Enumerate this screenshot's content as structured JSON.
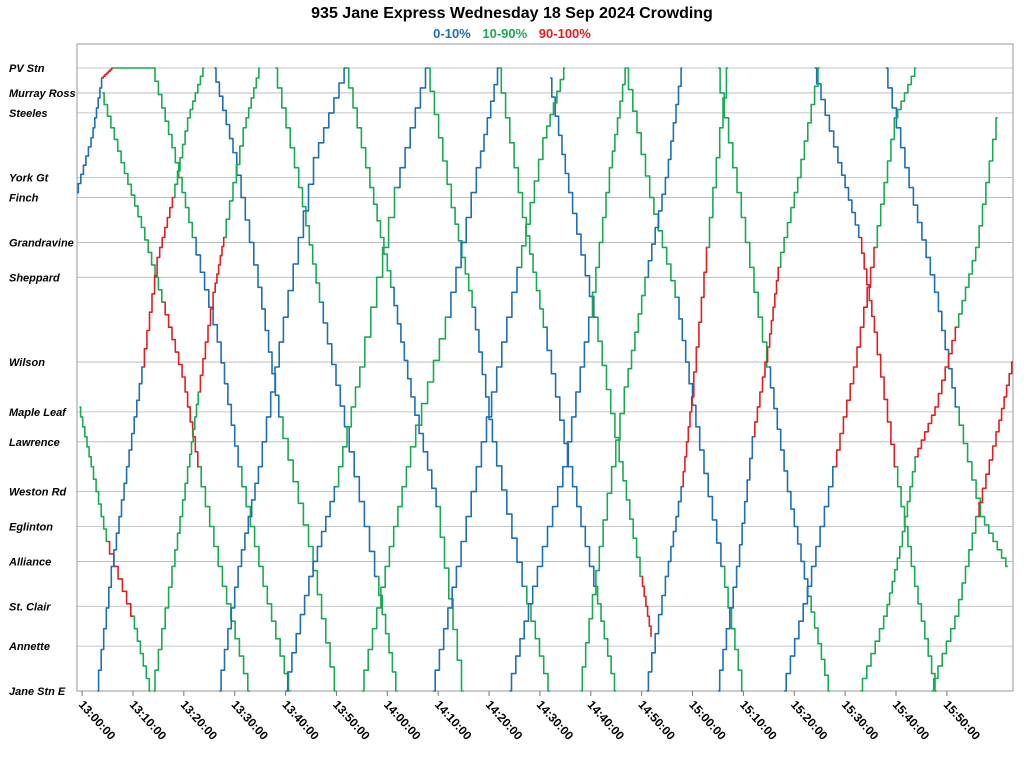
{
  "chart_data": {
    "type": "line",
    "title": "935 Jane Express Wednesday 18 Sep 2024 Crowding",
    "legend": [
      {
        "label": "0-10%",
        "color": "#1f6fb5"
      },
      {
        "label": "10-90%",
        "color": "#1aaa55"
      },
      {
        "label": "90-100%",
        "color": "#e02020"
      }
    ],
    "legend_position": "top-center",
    "grid": true,
    "x_range": [
      "12:59:00",
      "16:03:00"
    ],
    "x_ticks": [
      "13:00:00",
      "13:10:00",
      "13:20:00",
      "13:30:00",
      "13:40:00",
      "13:50:00",
      "14:00:00",
      "14:10:00",
      "14:20:00",
      "14:30:00",
      "14:40:00",
      "14:50:00",
      "15:00:00",
      "15:10:00",
      "15:20:00",
      "15:30:00",
      "15:40:00",
      "15:50:00"
    ],
    "stops": [
      {
        "name": "PV Stn",
        "km": 0.0
      },
      {
        "name": "Murray Ross",
        "km": 0.5
      },
      {
        "name": "Steeles",
        "km": 0.9
      },
      {
        "name": "York Gt",
        "km": 2.2
      },
      {
        "name": "Finch",
        "km": 2.6
      },
      {
        "name": "Grandravine",
        "km": 3.5
      },
      {
        "name": "Sheppard",
        "km": 4.2
      },
      {
        "name": "Wilson",
        "km": 5.9
      },
      {
        "name": "Maple Leaf",
        "km": 6.9
      },
      {
        "name": "Lawrence",
        "km": 7.5
      },
      {
        "name": "Weston Rd",
        "km": 8.5
      },
      {
        "name": "Eglinton",
        "km": 9.2
      },
      {
        "name": "Alliance",
        "km": 9.9
      },
      {
        "name": "St. Clair",
        "km": 10.8
      },
      {
        "name": "Annette",
        "km": 11.6
      },
      {
        "name": "Jane Stn E",
        "km": 12.5
      }
    ],
    "series": [
      {
        "direction": "southbound",
        "colors": [
          "#1aaa55",
          "#e02020",
          "#1aaa55"
        ],
        "points": [
          [
            "12:59:30",
            6.8
          ],
          [
            "13:02:00",
            8.0
          ],
          [
            "13:05:00",
            9.5
          ],
          [
            "13:10:00",
            11.0
          ],
          [
            "13:13:30",
            12.5
          ]
        ]
      },
      {
        "direction": "southbound",
        "colors": [
          "#1aaa55",
          "#e02020",
          "#1aaa55"
        ],
        "points": [
          [
            "13:04:00",
            0.5
          ],
          [
            "13:08:00",
            1.9
          ],
          [
            "13:12:00",
            3.2
          ],
          [
            "13:16:00",
            4.7
          ],
          [
            "13:20:00",
            6.2
          ],
          [
            "13:23:00",
            8.0
          ],
          [
            "13:28:00",
            10.4
          ],
          [
            "13:33:00",
            12.5
          ]
        ]
      },
      {
        "direction": "southbound",
        "colors": [
          "#1aaa55",
          "#1f6fb5",
          "#1aaa55"
        ],
        "points": [
          [
            "13:14:00",
            0.0
          ],
          [
            "13:18:00",
            1.6
          ],
          [
            "13:22:00",
            3.4
          ],
          [
            "13:27:00",
            5.5
          ],
          [
            "13:31:00",
            8.0
          ],
          [
            "13:36:00",
            10.4
          ],
          [
            "13:41:00",
            12.5
          ]
        ]
      },
      {
        "direction": "southbound",
        "colors": [
          "#1f6fb5",
          "#1aaa55"
        ],
        "points": [
          [
            "13:26:00",
            0.0
          ],
          [
            "13:30:00",
            1.7
          ],
          [
            "13:35:00",
            4.4
          ],
          [
            "13:39:00",
            7.0
          ],
          [
            "13:45:00",
            9.6
          ],
          [
            "13:50:00",
            12.5
          ]
        ]
      },
      {
        "direction": "southbound",
        "colors": [
          "#1aaa55",
          "#1f6fb5",
          "#1aaa55"
        ],
        "points": [
          [
            "13:38:00",
            0.0
          ],
          [
            "13:43:00",
            2.4
          ],
          [
            "13:47:00",
            4.7
          ],
          [
            "13:52:00",
            7.2
          ],
          [
            "13:58:00",
            10.2
          ],
          [
            "14:02:00",
            12.5
          ]
        ]
      },
      {
        "direction": "southbound",
        "colors": [
          "#1aaa55",
          "#1f6fb5",
          "#1aaa55"
        ],
        "points": [
          [
            "13:52:00",
            0.0
          ],
          [
            "13:57:00",
            2.4
          ],
          [
            "14:01:00",
            4.4
          ],
          [
            "14:05:00",
            6.6
          ],
          [
            "14:10:00",
            8.8
          ],
          [
            "14:15:00",
            12.5
          ]
        ]
      },
      {
        "direction": "southbound",
        "colors": [
          "#1aaa55",
          "#1f6fb5",
          "#1aaa55"
        ],
        "points": [
          [
            "14:08:00",
            0.0
          ],
          [
            "14:13:00",
            2.8
          ],
          [
            "14:17:00",
            4.8
          ],
          [
            "14:21:00",
            7.5
          ],
          [
            "14:27:00",
            10.4
          ],
          [
            "14:32:00",
            12.5
          ]
        ]
      },
      {
        "direction": "southbound",
        "colors": [
          "#1aaa55",
          "#1f6fb5",
          "#1aaa55"
        ],
        "points": [
          [
            "14:22:00",
            0.0
          ],
          [
            "14:27:00",
            3.0
          ],
          [
            "14:31:00",
            5.2
          ],
          [
            "14:36:00",
            8.0
          ],
          [
            "14:41:00",
            10.4
          ],
          [
            "14:45:00",
            12.5
          ]
        ]
      },
      {
        "direction": "southbound",
        "colors": [
          "#1f6fb5",
          "#1aaa55",
          "#e02020"
        ],
        "points": [
          [
            "14:32:00",
            0.2
          ],
          [
            "14:36:00",
            2.5
          ],
          [
            "14:41:00",
            5.0
          ],
          [
            "14:46:00",
            7.9
          ],
          [
            "14:50:00",
            10.2
          ],
          [
            "14:52:00",
            11.4
          ]
        ]
      },
      {
        "direction": "southbound",
        "colors": [
          "#1aaa55",
          "#1f6fb5",
          "#1aaa55"
        ],
        "points": [
          [
            "14:47:00",
            0.0
          ],
          [
            "14:52:00",
            2.6
          ],
          [
            "14:57:00",
            4.6
          ],
          [
            "15:01:00",
            7.2
          ],
          [
            "15:06:00",
            10.0
          ],
          [
            "15:10:00",
            12.5
          ]
        ]
      },
      {
        "direction": "southbound",
        "colors": [
          "#1aaa55",
          "#1f6fb5",
          "#1aaa55"
        ],
        "points": [
          [
            "15:05:00",
            0.0
          ],
          [
            "15:10:00",
            3.0
          ],
          [
            "15:15:00",
            6.0
          ],
          [
            "15:19:00",
            8.5
          ],
          [
            "15:23:00",
            10.6
          ],
          [
            "15:27:00",
            12.5
          ]
        ]
      },
      {
        "direction": "southbound",
        "colors": [
          "#1f6fb5",
          "#e02020",
          "#1aaa55"
        ],
        "points": [
          [
            "15:24:00",
            0.0
          ],
          [
            "15:29:00",
            1.9
          ],
          [
            "15:33:00",
            3.4
          ],
          [
            "15:36:00",
            5.3
          ],
          [
            "15:40:00",
            8.0
          ],
          [
            "15:44:00",
            10.4
          ],
          [
            "15:48:00",
            12.5
          ]
        ]
      },
      {
        "direction": "southbound",
        "colors": [
          "#1f6fb5",
          "#1aaa55"
        ],
        "points": [
          [
            "15:38:00",
            0.0
          ],
          [
            "15:43:00",
            2.4
          ],
          [
            "15:48:00",
            4.5
          ],
          [
            "15:52:00",
            6.8
          ],
          [
            "15:57:00",
            9.0
          ],
          [
            "16:02:00",
            10.0
          ]
        ]
      },
      {
        "direction": "northbound",
        "colors": [
          "#1f6fb5",
          "#e02020",
          "#1aaa55"
        ],
        "points": [
          [
            "12:59:00",
            2.5
          ],
          [
            "13:02:00",
            1.4
          ],
          [
            "13:04:00",
            0.2
          ],
          [
            "13:06:00",
            0.0
          ],
          [
            "13:14:00",
            0.0
          ]
        ]
      },
      {
        "direction": "northbound",
        "colors": [
          "#1f6fb5",
          "#e02020",
          "#1aaa55"
        ],
        "points": [
          [
            "13:03:00",
            12.5
          ],
          [
            "13:06:00",
            10.0
          ],
          [
            "13:09:00",
            8.0
          ],
          [
            "13:12:00",
            6.0
          ],
          [
            "13:15:00",
            3.8
          ],
          [
            "13:18:00",
            2.6
          ],
          [
            "13:21:00",
            1.0
          ],
          [
            "13:24:00",
            0.0
          ]
        ]
      },
      {
        "direction": "northbound",
        "colors": [
          "#1aaa55",
          "#e02020",
          "#1aaa55"
        ],
        "points": [
          [
            "13:14:00",
            12.5
          ],
          [
            "13:18:00",
            10.0
          ],
          [
            "13:21:00",
            8.0
          ],
          [
            "13:23:00",
            6.5
          ],
          [
            "13:26:00",
            4.5
          ],
          [
            "13:28:00",
            3.4
          ],
          [
            "13:32:00",
            1.2
          ],
          [
            "13:35:00",
            0.0
          ]
        ]
      },
      {
        "direction": "northbound",
        "colors": [
          "#1f6fb5"
        ],
        "points": [
          [
            "13:27:00",
            12.5
          ],
          [
            "13:31:00",
            10.0
          ],
          [
            "13:35:00",
            8.0
          ],
          [
            "13:40:00",
            5.0
          ],
          [
            "13:46:00",
            1.8
          ],
          [
            "13:52:00",
            0.0
          ]
        ]
      },
      {
        "direction": "northbound",
        "colors": [
          "#1f6fb5",
          "#1aaa55",
          "#1f6fb5"
        ],
        "points": [
          [
            "13:40:00",
            12.5
          ],
          [
            "13:45:00",
            10.2
          ],
          [
            "13:50:00",
            8.4
          ],
          [
            "13:55:00",
            6.0
          ],
          [
            "14:02:00",
            2.4
          ],
          [
            "14:08:00",
            0.0
          ]
        ]
      },
      {
        "direction": "northbound",
        "colors": [
          "#1aaa55",
          "#1f6fb5"
        ],
        "points": [
          [
            "13:55:00",
            12.5
          ],
          [
            "14:00:00",
            10.0
          ],
          [
            "14:05:00",
            7.6
          ],
          [
            "14:12:00",
            5.0
          ],
          [
            "14:18:00",
            2.0
          ],
          [
            "14:22:00",
            0.0
          ]
        ]
      },
      {
        "direction": "northbound",
        "colors": [
          "#1f6fb5",
          "#1aaa55"
        ],
        "points": [
          [
            "14:09:00",
            12.5
          ],
          [
            "14:14:00",
            10.0
          ],
          [
            "14:20:00",
            7.0
          ],
          [
            "14:26:00",
            4.0
          ],
          [
            "14:31:00",
            1.4
          ],
          [
            "14:35:00",
            0.0
          ]
        ]
      },
      {
        "direction": "northbound",
        "colors": [
          "#1f6fb5",
          "#1aaa55"
        ],
        "points": [
          [
            "14:24:00",
            12.5
          ],
          [
            "14:29:00",
            10.4
          ],
          [
            "14:35:00",
            8.0
          ],
          [
            "14:40:00",
            5.0
          ],
          [
            "14:44:00",
            2.0
          ],
          [
            "14:47:00",
            0.0
          ]
        ]
      },
      {
        "direction": "northbound",
        "colors": [
          "#1aaa55",
          "#1f6fb5"
        ],
        "points": [
          [
            "14:38:00",
            12.5
          ],
          [
            "14:42:00",
            9.6
          ],
          [
            "14:47:00",
            6.4
          ],
          [
            "14:51:00",
            4.2
          ],
          [
            "14:55:00",
            2.2
          ],
          [
            "14:58:00",
            0.0
          ]
        ]
      },
      {
        "direction": "northbound",
        "colors": [
          "#1f6fb5",
          "#e02020",
          "#1aaa55"
        ],
        "points": [
          [
            "14:51:00",
            12.5
          ],
          [
            "14:55:00",
            10.2
          ],
          [
            "14:58:00",
            8.4
          ],
          [
            "15:00:00",
            6.6
          ],
          [
            "15:03:00",
            3.6
          ],
          [
            "15:07:00",
            0.0
          ]
        ]
      },
      {
        "direction": "northbound",
        "colors": [
          "#1f6fb5",
          "#e02020",
          "#1aaa55"
        ],
        "points": [
          [
            "15:05:00",
            12.5
          ],
          [
            "15:09:00",
            10.0
          ],
          [
            "15:12:00",
            7.4
          ],
          [
            "15:15:00",
            5.6
          ],
          [
            "15:17:00",
            4.0
          ],
          [
            "15:21:00",
            2.2
          ],
          [
            "15:25:00",
            0.0
          ]
        ]
      },
      {
        "direction": "northbound",
        "colors": [
          "#1f6fb5",
          "#e02020",
          "#1aaa55"
        ],
        "points": [
          [
            "15:18:00",
            12.5
          ],
          [
            "15:23:00",
            10.4
          ],
          [
            "15:28:00",
            8.0
          ],
          [
            "15:32:00",
            6.0
          ],
          [
            "15:36:00",
            3.6
          ],
          [
            "15:40:00",
            1.0
          ],
          [
            "15:44:00",
            0.0
          ]
        ]
      },
      {
        "direction": "northbound",
        "colors": [
          "#1aaa55",
          "#e02020",
          "#1aaa55"
        ],
        "points": [
          [
            "15:33:00",
            12.5
          ],
          [
            "15:38:00",
            11.0
          ],
          [
            "15:41:00",
            9.6
          ],
          [
            "15:44:00",
            7.8
          ],
          [
            "15:48:00",
            6.8
          ],
          [
            "15:52:00",
            5.2
          ],
          [
            "15:56:00",
            3.6
          ],
          [
            "16:00:00",
            1.0
          ]
        ]
      },
      {
        "direction": "northbound",
        "colors": [
          "#1aaa55",
          "#e02020"
        ],
        "points": [
          [
            "15:47:00",
            12.5
          ],
          [
            "15:52:00",
            11.0
          ],
          [
            "15:56:00",
            9.0
          ],
          [
            "16:00:00",
            7.3
          ],
          [
            "16:03:00",
            5.9
          ]
        ]
      }
    ]
  }
}
